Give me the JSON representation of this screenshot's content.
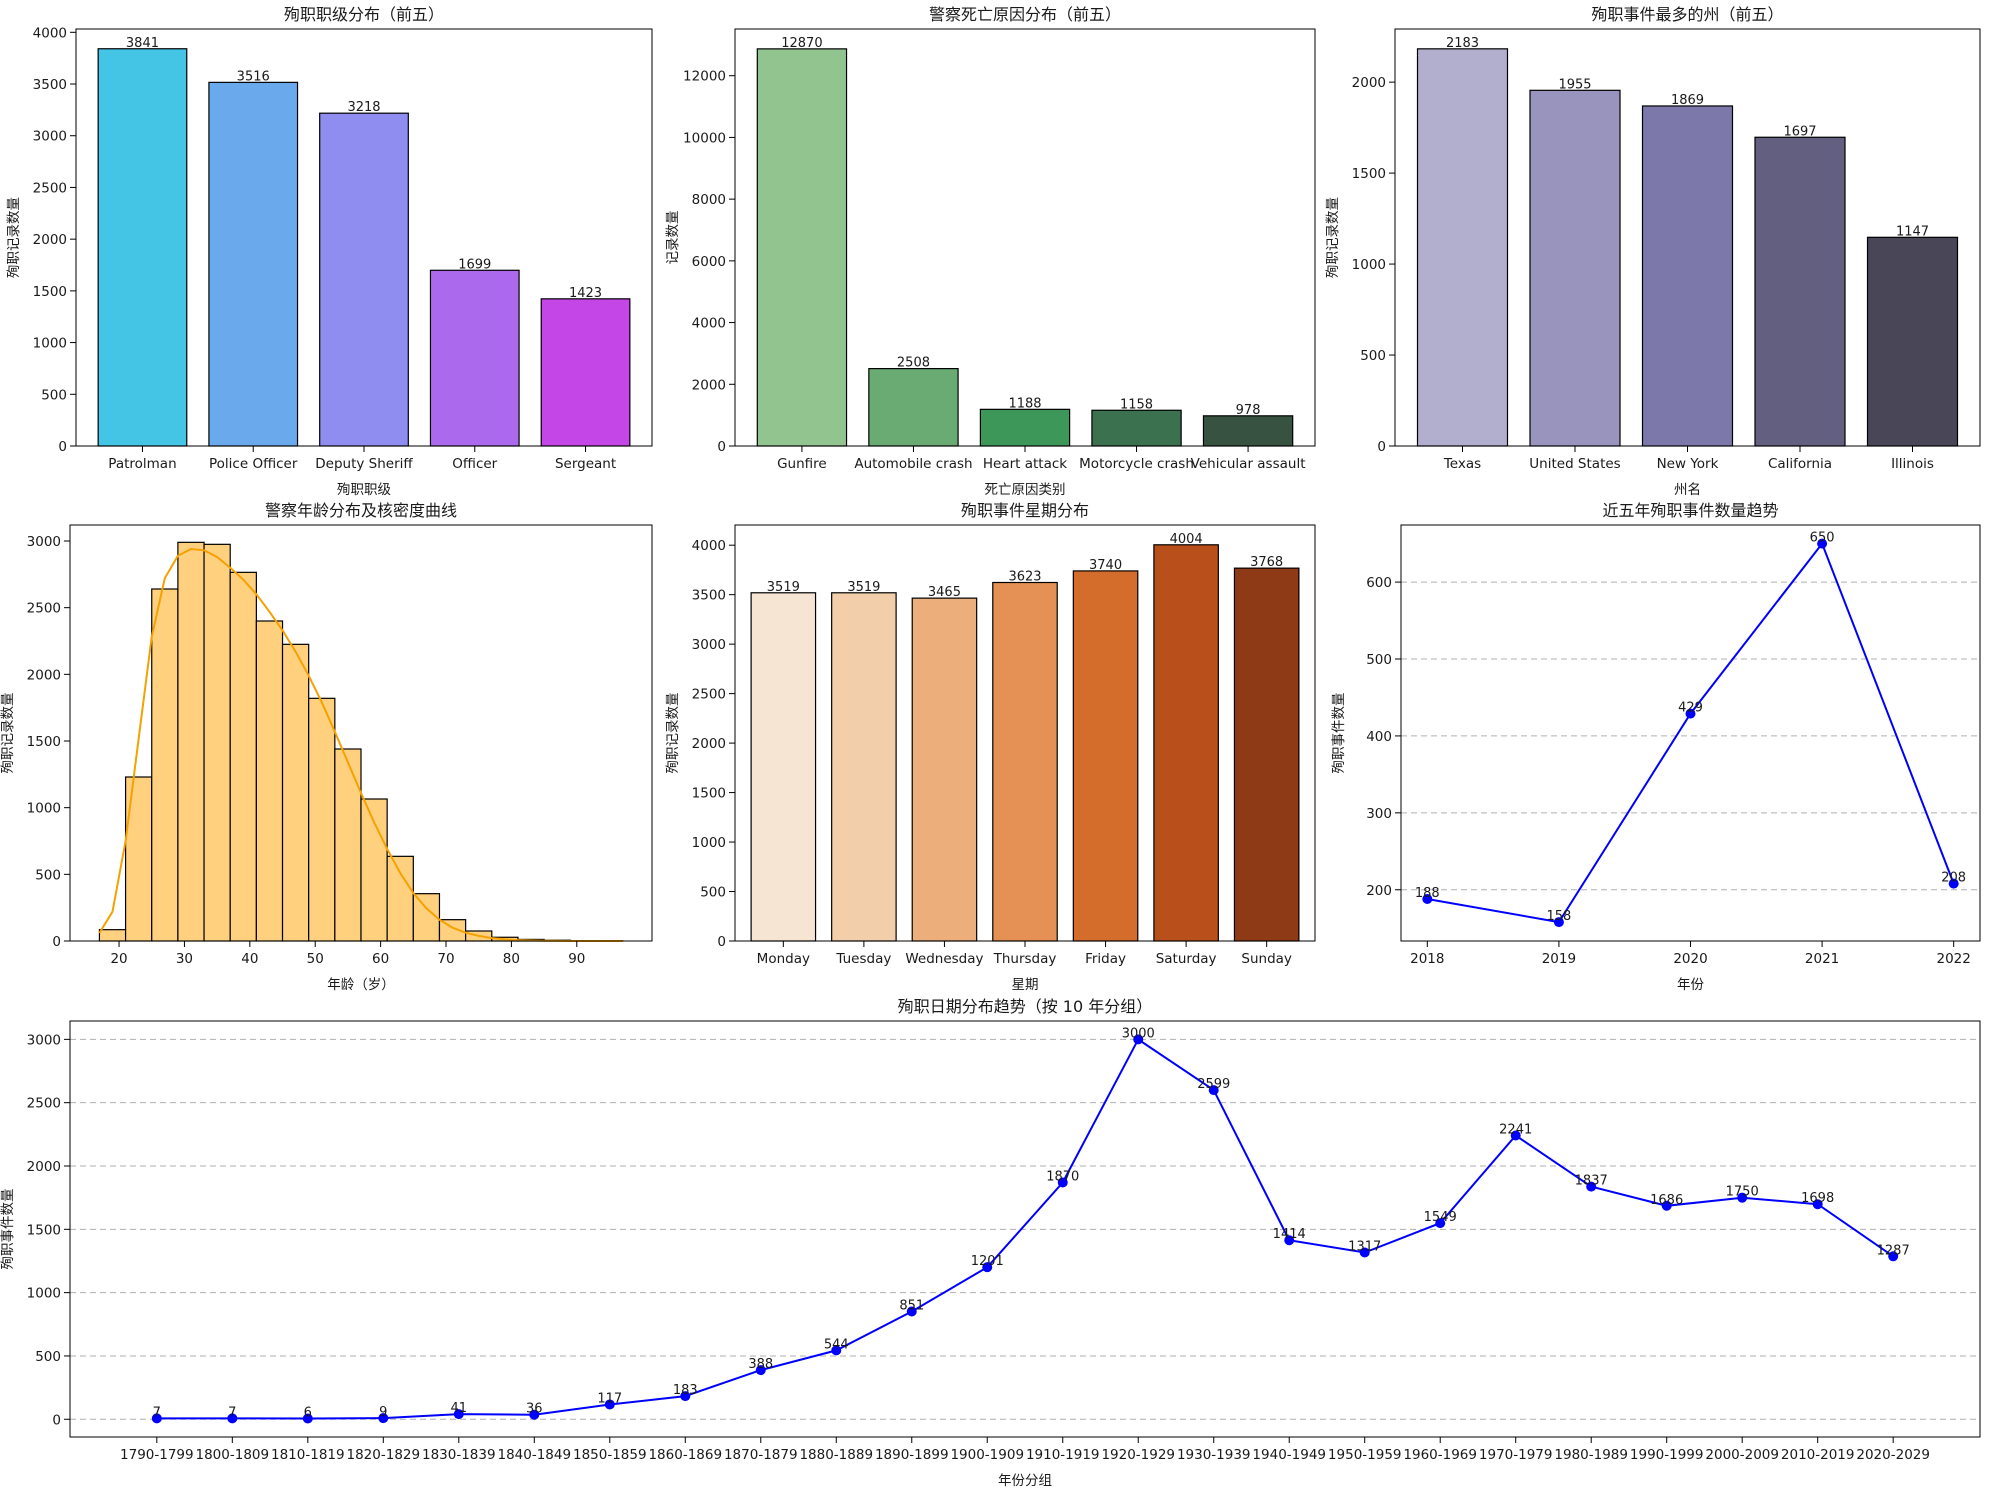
{
  "chart_data": [
    {
      "id": "rank",
      "type": "bar",
      "title": "殉职职级分布（前五）",
      "xlabel": "殉职职级",
      "ylabel": "殉职记录数量",
      "categories": [
        "Patrolman",
        "Police Officer",
        "Deputy Sheriff",
        "Officer",
        "Sergeant"
      ],
      "values": [
        3841,
        3516,
        3218,
        1699,
        1423
      ],
      "value_labels": [
        "3841",
        "3516",
        "3218",
        "1699",
        "1423"
      ],
      "colors": [
        "#45c5e5",
        "#6aa9ec",
        "#8f8ef0",
        "#ab6aed",
        "#c446e6"
      ],
      "ylim": [
        0,
        4032
      ],
      "yticks": [
        0,
        500,
        1000,
        1500,
        2000,
        2500,
        3000,
        3500,
        4000
      ],
      "ytick_labels": [
        "0",
        "500",
        "1000",
        "1500",
        "2000",
        "2500",
        "3000",
        "3500",
        "4000"
      ],
      "grid": false
    },
    {
      "id": "cause",
      "type": "bar",
      "title": "警察死亡原因分布（前五）",
      "xlabel": "死亡原因类别",
      "ylabel": "记录数量",
      "categories": [
        "Gunfire",
        "Automobile crash",
        "Heart attack",
        "Motorcycle crash",
        "Vehicular assault"
      ],
      "values": [
        12870,
        2508,
        1188,
        1158,
        978
      ],
      "value_labels": [
        "12870",
        "2508",
        "1188",
        "1158",
        "978"
      ],
      "colors": [
        "#91c48f",
        "#6aab74",
        "#3d9758",
        "#3b714e",
        "#375240"
      ],
      "ylim": [
        0,
        13514
      ],
      "yticks": [
        0,
        2000,
        4000,
        6000,
        8000,
        10000,
        12000
      ],
      "ytick_labels": [
        "0",
        "2000",
        "4000",
        "6000",
        "8000",
        "10000",
        "12000"
      ],
      "grid": false
    },
    {
      "id": "state",
      "type": "bar",
      "title": "殉职事件最多的州（前五）",
      "xlabel": "州名",
      "ylabel": "殉职记录数量",
      "categories": [
        "Texas",
        "United States",
        "New York",
        "California",
        "Illinois"
      ],
      "values": [
        2183,
        1955,
        1869,
        1697,
        1147
      ],
      "value_labels": [
        "2183",
        "1955",
        "1869",
        "1697",
        "1147"
      ],
      "colors": [
        "#b2aece",
        "#9894bd",
        "#7c78a9",
        "#635f80",
        "#484657"
      ],
      "ylim": [
        0,
        2292
      ],
      "yticks": [
        0,
        500,
        1000,
        1500,
        2000
      ],
      "ytick_labels": [
        "0",
        "500",
        "1000",
        "1500",
        "2000"
      ],
      "grid": false
    },
    {
      "id": "age",
      "type": "histogram",
      "title": "警察年龄分布及核密度曲线",
      "xlabel": "年龄（岁）",
      "ylabel": "殉职记录数量",
      "bin_edges": [
        17,
        21,
        25,
        29,
        33,
        37,
        41,
        45,
        49,
        53,
        57,
        61,
        65,
        69,
        73,
        77,
        81,
        85,
        89,
        93,
        97
      ],
      "counts": [
        85,
        1230,
        2640,
        2990,
        2975,
        2765,
        2400,
        2225,
        1820,
        1440,
        1065,
        635,
        355,
        160,
        75,
        28,
        12,
        6,
        3,
        2
      ],
      "kde": {
        "x": [
          17,
          19,
          21,
          23,
          25,
          27,
          29,
          31,
          33,
          35,
          37,
          39,
          41,
          43,
          45,
          47,
          49,
          51,
          53,
          55,
          57,
          59,
          61,
          63,
          65,
          67,
          69,
          71,
          73,
          75,
          77,
          79,
          81,
          83,
          85,
          87,
          89,
          93,
          97
        ],
        "y": [
          60,
          220,
          750,
          1520,
          2280,
          2720,
          2890,
          2940,
          2930,
          2880,
          2800,
          2710,
          2600,
          2470,
          2330,
          2170,
          1990,
          1790,
          1570,
          1340,
          1110,
          890,
          690,
          510,
          360,
          245,
          160,
          100,
          62,
          38,
          22,
          13,
          7,
          4,
          2,
          1,
          0,
          0,
          0
        ]
      },
      "bar_color": "#ffd17f",
      "line_color": "#f5a100",
      "xlim": [
        12.5,
        101.5
      ],
      "xticks": [
        20,
        30,
        40,
        50,
        60,
        70,
        80,
        90
      ],
      "xtick_labels": [
        "20",
        "30",
        "40",
        "50",
        "60",
        "70",
        "80",
        "90"
      ],
      "ylim": [
        0,
        3120
      ],
      "yticks": [
        0,
        500,
        1000,
        1500,
        2000,
        2500,
        3000
      ],
      "ytick_labels": [
        "0",
        "500",
        "1000",
        "1500",
        "2000",
        "2500",
        "3000"
      ],
      "grid": false
    },
    {
      "id": "weekday",
      "type": "bar",
      "title": "殉职事件星期分布",
      "xlabel": "星期",
      "ylabel": "殉职记录数量",
      "categories": [
        "Monday",
        "Tuesday",
        "Wednesday",
        "Thursday",
        "Friday",
        "Saturday",
        "Sunday"
      ],
      "values": [
        3519,
        3519,
        3465,
        3623,
        3740,
        4004,
        3768
      ],
      "value_labels": [
        "3519",
        "3519",
        "3465",
        "3623",
        "3740",
        "4004",
        "3768"
      ],
      "colors": [
        "#f7e5d3",
        "#f2cfaa",
        "#ecae7b",
        "#e59055",
        "#d46c2c",
        "#b94f1b",
        "#8e3a17"
      ],
      "ylim": [
        0,
        4204
      ],
      "yticks": [
        0,
        500,
        1000,
        1500,
        2000,
        2500,
        3000,
        3500,
        4000
      ],
      "ytick_labels": [
        "0",
        "500",
        "1000",
        "1500",
        "2000",
        "2500",
        "3000",
        "3500",
        "4000"
      ],
      "grid": false
    },
    {
      "id": "recent",
      "type": "line",
      "title": "近五年殉职事件数量趋势",
      "xlabel": "年份",
      "ylabel": "殉职事件数量",
      "categories": [
        "2018",
        "2019",
        "2020",
        "2021",
        "2022"
      ],
      "values": [
        188,
        158,
        429,
        650,
        208
      ],
      "value_labels": [
        "188",
        "158",
        "429",
        "650",
        "208"
      ],
      "color": "#0000ff",
      "ylim": [
        133.4,
        674.2
      ],
      "yticks": [
        200,
        300,
        400,
        500,
        600
      ],
      "ytick_labels": [
        "200",
        "300",
        "400",
        "500",
        "600"
      ],
      "grid": true
    },
    {
      "id": "decade",
      "type": "line",
      "title": "殉职日期分布趋势（按 10 年分组）",
      "xlabel": "年份分组",
      "ylabel": "殉职事件数量",
      "categories": [
        "1790-1799",
        "1800-1809",
        "1810-1819",
        "1820-1829",
        "1830-1839",
        "1840-1849",
        "1850-1859",
        "1860-1869",
        "1870-1879",
        "1880-1889",
        "1890-1899",
        "1900-1909",
        "1910-1919",
        "1920-1929",
        "1930-1939",
        "1940-1949",
        "1950-1959",
        "1960-1969",
        "1970-1979",
        "1980-1989",
        "1990-1999",
        "2000-2009",
        "2010-2019",
        "2020-2029"
      ],
      "values": [
        7,
        7,
        6,
        9,
        41,
        36,
        117,
        183,
        388,
        544,
        851,
        1201,
        1870,
        3000,
        2599,
        1414,
        1317,
        1549,
        2241,
        1837,
        1686,
        1750,
        1698,
        1287
      ],
      "value_labels": [
        "7",
        "7",
        "6",
        "9",
        "41",
        "36",
        "117",
        "183",
        "388",
        "544",
        "851",
        "1201",
        "1870",
        "3000",
        "2599",
        "1414",
        "1317",
        "1549",
        "2241",
        "1837",
        "1686",
        "1750",
        "1698",
        "1287"
      ],
      "color": "#0000ff",
      "ylim": [
        -140,
        3145
      ],
      "yticks": [
        0,
        500,
        1000,
        1500,
        2000,
        2500,
        3000
      ],
      "ytick_labels": [
        "0",
        "500",
        "1000",
        "1500",
        "2000",
        "2500",
        "3000"
      ],
      "grid": true
    }
  ]
}
